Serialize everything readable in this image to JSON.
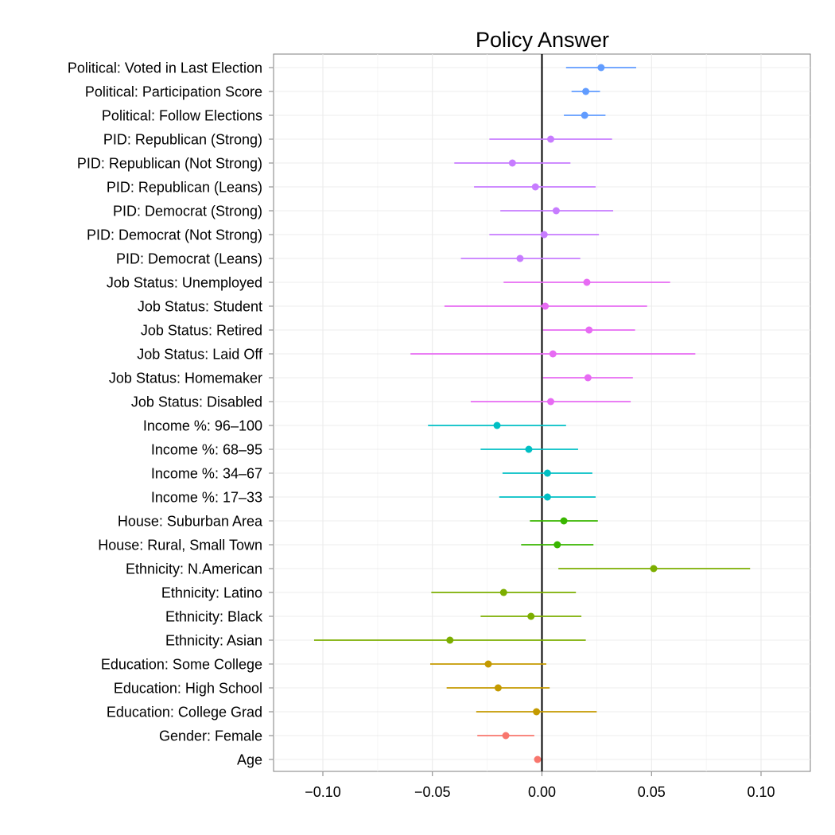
{
  "chart_data": {
    "type": "scatter",
    "title": "Policy Answer",
    "xlabel": "",
    "ylabel": "",
    "xlim": [
      -0.1225,
      0.1225
    ],
    "x_ticks": [
      -0.1,
      -0.05,
      0.0,
      0.05,
      0.1
    ],
    "x_tick_labels": [
      "−0.10",
      "−0.05",
      "0.00",
      "0.05",
      "0.10"
    ],
    "reference_line_x": 0,
    "grid": true,
    "legend": "none",
    "points": [
      {
        "label": "Political: Voted in Last Election",
        "estimate": 0.027,
        "low": 0.011,
        "high": 0.043,
        "color": "#619CFF"
      },
      {
        "label": "Political: Participation Score",
        "estimate": 0.02,
        "low": 0.0135,
        "high": 0.0265,
        "color": "#619CFF"
      },
      {
        "label": "Political: Follow Elections",
        "estimate": 0.0195,
        "low": 0.01,
        "high": 0.029,
        "color": "#619CFF"
      },
      {
        "label": "PID: Republican (Strong)",
        "estimate": 0.004,
        "low": -0.024,
        "high": 0.032,
        "color": "#C77CFF"
      },
      {
        "label": "PID: Republican (Not Strong)",
        "estimate": -0.0135,
        "low": -0.04,
        "high": 0.013,
        "color": "#C77CFF"
      },
      {
        "label": "PID: Republican (Leans)",
        "estimate": -0.003,
        "low": -0.031,
        "high": 0.0245,
        "color": "#C77CFF"
      },
      {
        "label": "PID: Democrat (Strong)",
        "estimate": 0.0065,
        "low": -0.019,
        "high": 0.0325,
        "color": "#C77CFF"
      },
      {
        "label": "PID: Democrat (Not Strong)",
        "estimate": 0.001,
        "low": -0.024,
        "high": 0.026,
        "color": "#C77CFF"
      },
      {
        "label": "PID: Democrat (Leans)",
        "estimate": -0.01,
        "low": -0.037,
        "high": 0.0175,
        "color": "#C77CFF"
      },
      {
        "label": "Job Status: Unemployed",
        "estimate": 0.0205,
        "low": -0.0175,
        "high": 0.0585,
        "color": "#E76BF3"
      },
      {
        "label": "Job Status: Student",
        "estimate": 0.0015,
        "low": -0.0445,
        "high": 0.048,
        "color": "#E76BF3"
      },
      {
        "label": "Job Status: Retired",
        "estimate": 0.0215,
        "low": 0.0005,
        "high": 0.0425,
        "color": "#E76BF3"
      },
      {
        "label": "Job Status: Laid Off",
        "estimate": 0.005,
        "low": -0.06,
        "high": 0.07,
        "color": "#E76BF3"
      },
      {
        "label": "Job Status: Homemaker",
        "estimate": 0.021,
        "low": 0.0005,
        "high": 0.0415,
        "color": "#E76BF3"
      },
      {
        "label": "Job Status: Disabled",
        "estimate": 0.004,
        "low": -0.0325,
        "high": 0.0405,
        "color": "#E76BF3"
      },
      {
        "label": "Income %: 96–100",
        "estimate": -0.0205,
        "low": -0.052,
        "high": 0.011,
        "color": "#00BFC4"
      },
      {
        "label": "Income %: 68–95",
        "estimate": -0.006,
        "low": -0.028,
        "high": 0.0165,
        "color": "#00BFC4"
      },
      {
        "label": "Income %: 34–67",
        "estimate": 0.0025,
        "low": -0.018,
        "high": 0.023,
        "color": "#00BFC4"
      },
      {
        "label": "Income %: 17–33",
        "estimate": 0.0025,
        "low": -0.0195,
        "high": 0.0245,
        "color": "#00BFC4"
      },
      {
        "label": "House: Suburban Area",
        "estimate": 0.01,
        "low": -0.0055,
        "high": 0.0255,
        "color": "#39B600"
      },
      {
        "label": "House: Rural, Small Town",
        "estimate": 0.007,
        "low": -0.0095,
        "high": 0.0235,
        "color": "#39B600"
      },
      {
        "label": "Ethnicity: N.American",
        "estimate": 0.051,
        "low": 0.0075,
        "high": 0.095,
        "color": "#7CAE00"
      },
      {
        "label": "Ethnicity: Latino",
        "estimate": -0.0175,
        "low": -0.0505,
        "high": 0.0155,
        "color": "#7CAE00"
      },
      {
        "label": "Ethnicity: Black",
        "estimate": -0.005,
        "low": -0.028,
        "high": 0.018,
        "color": "#7CAE00"
      },
      {
        "label": "Ethnicity: Asian",
        "estimate": -0.042,
        "low": -0.104,
        "high": 0.02,
        "color": "#7CAE00"
      },
      {
        "label": "Education: Some College",
        "estimate": -0.0245,
        "low": -0.051,
        "high": 0.002,
        "color": "#C49A00"
      },
      {
        "label": "Education: High School",
        "estimate": -0.02,
        "low": -0.0435,
        "high": 0.0035,
        "color": "#C49A00"
      },
      {
        "label": "Education: College Grad",
        "estimate": -0.0025,
        "low": -0.03,
        "high": 0.025,
        "color": "#C49A00"
      },
      {
        "label": "Gender: Female",
        "estimate": -0.0165,
        "low": -0.0295,
        "high": -0.0035,
        "color": "#F8766D"
      },
      {
        "label": "Age",
        "estimate": -0.002,
        "low": -0.002,
        "high": -0.002,
        "color": "#F8766D"
      }
    ]
  }
}
